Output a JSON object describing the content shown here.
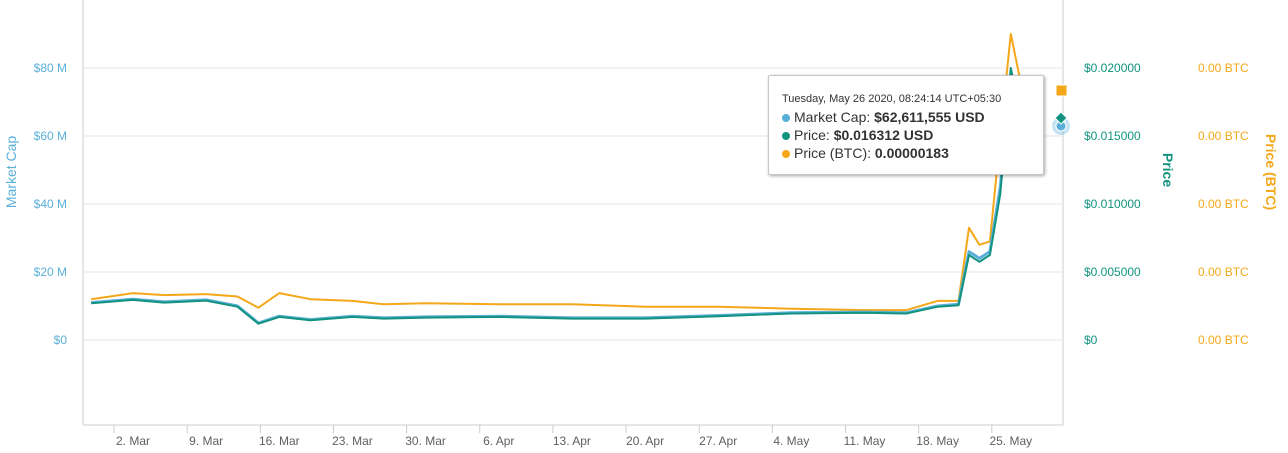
{
  "colors": {
    "market_cap": "#5aafd9",
    "price": "#12937f",
    "price_btc": "#f4a819",
    "grid": "#e6e6e6"
  },
  "chart_data": {
    "type": "line",
    "x_ticks": [
      "2. Mar",
      "9. Mar",
      "16. Mar",
      "23. Mar",
      "30. Mar",
      "6. Apr",
      "13. Apr",
      "20. Apr",
      "27. Apr",
      "4. May",
      "11. May",
      "18. May",
      "25. May"
    ],
    "axes": {
      "left": {
        "label": "Market Cap",
        "ticks": [
          "$0",
          "$20 M",
          "$40 M",
          "$60 M",
          "$80 M"
        ]
      },
      "right1": {
        "label": "Price",
        "ticks": [
          "$0",
          "$0.005000",
          "$0.010000",
          "$0.015000",
          "$0.020000"
        ]
      },
      "right2": {
        "label": "Price (BTC)",
        "ticks": [
          "0.00 BTC",
          "0.00 BTC",
          "0.00 BTC",
          "0.00 BTC",
          "0.00 BTC"
        ]
      }
    },
    "x_range": [
      "2020-02-27",
      "2020-05-27"
    ],
    "series": [
      {
        "key": "price_btc",
        "axis": "right1_equiv",
        "points": [
          [
            "2020-02-27",
            12.0
          ],
          [
            "2020-03-02",
            13.8
          ],
          [
            "2020-03-05",
            13.2
          ],
          [
            "2020-03-09",
            13.5
          ],
          [
            "2020-03-12",
            12.8
          ],
          [
            "2020-03-14",
            9.5
          ],
          [
            "2020-03-16",
            13.8
          ],
          [
            "2020-03-19",
            12.0
          ],
          [
            "2020-03-23",
            11.5
          ],
          [
            "2020-03-26",
            10.5
          ],
          [
            "2020-03-30",
            10.8
          ],
          [
            "2020-04-06",
            10.5
          ],
          [
            "2020-04-13",
            10.5
          ],
          [
            "2020-04-20",
            9.8
          ],
          [
            "2020-04-27",
            9.8
          ],
          [
            "2020-05-04",
            9.2
          ],
          [
            "2020-05-11",
            8.8
          ],
          [
            "2020-05-15",
            8.8
          ],
          [
            "2020-05-18",
            11.5
          ],
          [
            "2020-05-20",
            11.5
          ],
          [
            "2020-05-21",
            33.0
          ],
          [
            "2020-05-22",
            28.0
          ],
          [
            "2020-05-23",
            29.0
          ],
          [
            "2020-05-24",
            60.0
          ],
          [
            "2020-05-25",
            90.0
          ],
          [
            "2020-05-26",
            75.0
          ],
          [
            "2020-05-27",
            72.0
          ]
        ]
      },
      {
        "key": "market_cap",
        "axis": "left",
        "points": [
          [
            "2020-02-27",
            11.0
          ],
          [
            "2020-03-02",
            12.0
          ],
          [
            "2020-03-05",
            11.2
          ],
          [
            "2020-03-09",
            11.8
          ],
          [
            "2020-03-12",
            10.0
          ],
          [
            "2020-03-14",
            5.0
          ],
          [
            "2020-03-16",
            7.0
          ],
          [
            "2020-03-19",
            6.0
          ],
          [
            "2020-03-23",
            7.0
          ],
          [
            "2020-03-26",
            6.5
          ],
          [
            "2020-03-30",
            6.8
          ],
          [
            "2020-04-06",
            7.0
          ],
          [
            "2020-04-13",
            6.5
          ],
          [
            "2020-04-20",
            6.5
          ],
          [
            "2020-04-27",
            7.2
          ],
          [
            "2020-05-04",
            8.0
          ],
          [
            "2020-05-11",
            8.2
          ],
          [
            "2020-05-15",
            8.0
          ],
          [
            "2020-05-18",
            10.0
          ],
          [
            "2020-05-20",
            10.5
          ],
          [
            "2020-05-21",
            26.0
          ],
          [
            "2020-05-22",
            24.0
          ],
          [
            "2020-05-23",
            26.0
          ],
          [
            "2020-05-24",
            45.0
          ],
          [
            "2020-05-25",
            78.0
          ],
          [
            "2020-05-26",
            62.6
          ],
          [
            "2020-05-27",
            64.0
          ]
        ]
      },
      {
        "key": "price",
        "axis": "left_equiv",
        "points": [
          [
            "2020-02-27",
            10.8
          ],
          [
            "2020-03-02",
            11.8
          ],
          [
            "2020-03-05",
            11.0
          ],
          [
            "2020-03-09",
            11.6
          ],
          [
            "2020-03-12",
            9.8
          ],
          [
            "2020-03-14",
            4.8
          ],
          [
            "2020-03-16",
            6.8
          ],
          [
            "2020-03-19",
            5.8
          ],
          [
            "2020-03-23",
            6.8
          ],
          [
            "2020-03-26",
            6.3
          ],
          [
            "2020-03-30",
            6.6
          ],
          [
            "2020-04-06",
            6.8
          ],
          [
            "2020-04-13",
            6.3
          ],
          [
            "2020-04-20",
            6.3
          ],
          [
            "2020-04-27",
            7.0
          ],
          [
            "2020-05-04",
            7.8
          ],
          [
            "2020-05-11",
            8.0
          ],
          [
            "2020-05-15",
            7.8
          ],
          [
            "2020-05-18",
            9.8
          ],
          [
            "2020-05-20",
            10.2
          ],
          [
            "2020-05-21",
            25.0
          ],
          [
            "2020-05-22",
            23.0
          ],
          [
            "2020-05-23",
            25.0
          ],
          [
            "2020-05-24",
            43.0
          ],
          [
            "2020-05-25",
            80.0
          ],
          [
            "2020-05-26",
            65.0
          ],
          [
            "2020-05-27",
            63.0
          ]
        ]
      }
    ],
    "y_range_left": [
      0,
      80
    ]
  },
  "tooltip": {
    "timestamp": "Tuesday, May 26 2020, 08:24:14 UTC+05:30",
    "rows": [
      {
        "label": "Market Cap:",
        "value": "$62,611,555 USD",
        "color_key": "market_cap"
      },
      {
        "label": "Price:",
        "value": "$0.016312 USD",
        "color_key": "price"
      },
      {
        "label": "Price (BTC):",
        "value": "0.00000183",
        "color_key": "price_btc"
      }
    ]
  }
}
